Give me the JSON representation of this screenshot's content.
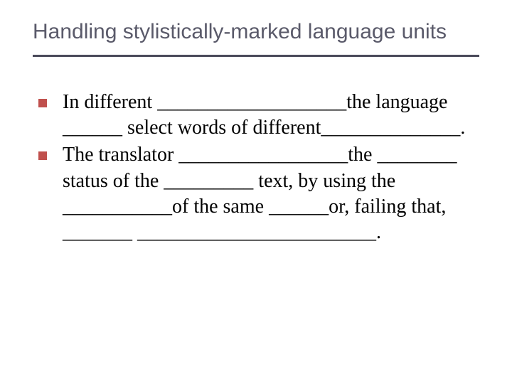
{
  "slide": {
    "title": "Handling stylistically-marked language units",
    "title_color": "#5a5a6a",
    "title_fontsize": 30,
    "title_font": "Verdana",
    "underline_color": "#4a4a5a",
    "underline_height": 3,
    "background_color": "#ffffff",
    "bullets": [
      {
        "text": "In different ___________________the language ______ select words of different______________.",
        "bullet_color": "#c0504d",
        "text_color": "#000000",
        "text_fontsize": 28,
        "text_font": "Times New Roman"
      },
      {
        "text": "The translator _________________the ________ status of the _________ text, by using the ___________of the same ______or, failing that, _______ ________________________.",
        "bullet_color": "#c0504d",
        "text_color": "#000000",
        "text_fontsize": 28,
        "text_font": "Times New Roman"
      }
    ]
  }
}
